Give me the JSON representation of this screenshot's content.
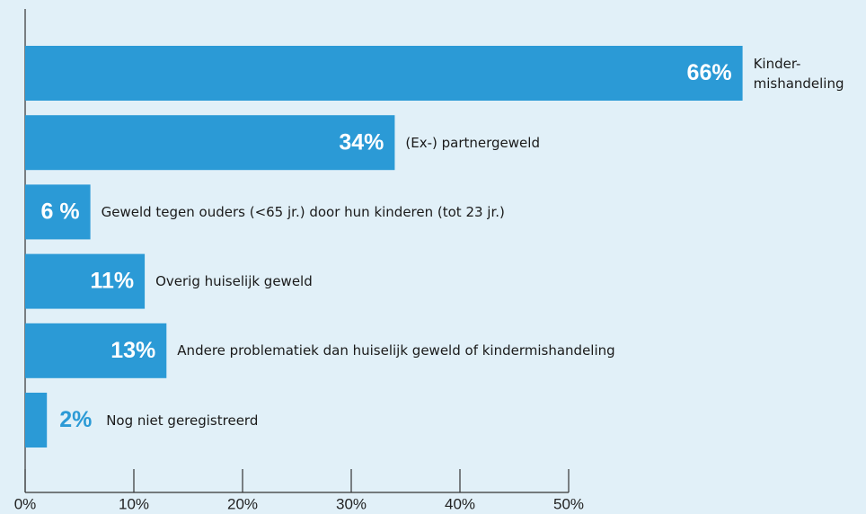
{
  "chart_data": {
    "type": "bar",
    "orientation": "horizontal",
    "categories": [
      "Kinder- mishandeling",
      "(Ex-) partnergeweld",
      "Geweld tegen ouders (<65 jr.) door hun kinderen (tot 23 jr.)",
      "Overig huiselijk geweld",
      "Andere problematiek dan huiselijk geweld of kindermishandeling",
      "Nog niet geregistreerd"
    ],
    "values": [
      66,
      34,
      6,
      11,
      13,
      2
    ],
    "value_labels": [
      "66%",
      "34%",
      "6 %",
      "11%",
      "13%",
      "2%"
    ],
    "color": "#2b9ad6",
    "xlim": [
      0,
      50
    ],
    "xticks": [
      {
        "value": 0,
        "label": "0%"
      },
      {
        "value": 10,
        "label": "10%"
      },
      {
        "value": 20,
        "label": "20%"
      },
      {
        "value": 30,
        "label": "30%"
      },
      {
        "value": 40,
        "label": "40%"
      },
      {
        "value": 50,
        "label": "50%"
      }
    ],
    "grid": false
  }
}
